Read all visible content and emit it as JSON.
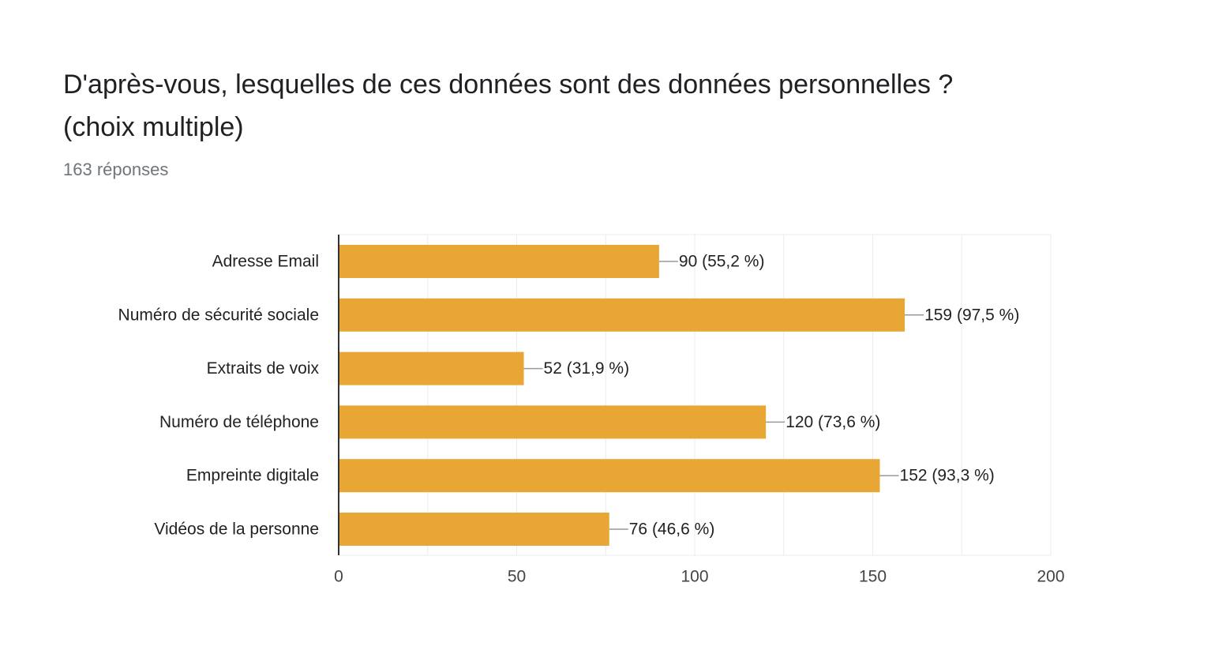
{
  "title": "D'après-vous, lesquelles de ces données sont des données personnelles ? (choix multiple)",
  "subtitle": "163 réponses",
  "colors": {
    "bar": "#e8a735",
    "grid": "#ebebeb",
    "axis": "#333333",
    "leader": "#999999"
  },
  "chart_data": {
    "type": "bar",
    "orientation": "horizontal",
    "categories": [
      "Adresse Email",
      "Numéro de sécurité sociale",
      "Extraits de voix",
      "Numéro de téléphone",
      "Empreinte digitale",
      "Vidéos de la personne"
    ],
    "values": [
      90,
      159,
      52,
      120,
      152,
      76
    ],
    "data_labels": [
      "90 (55,2 %)",
      "159 (97,5 %)",
      "52 (31,9 %)",
      "120 (73,6 %)",
      "152 (93,3 %)",
      "76 (46,6 %)"
    ],
    "xlim": [
      0,
      200
    ],
    "xticks": [
      0,
      50,
      100,
      150,
      200
    ],
    "grid": true,
    "legend": false
  }
}
